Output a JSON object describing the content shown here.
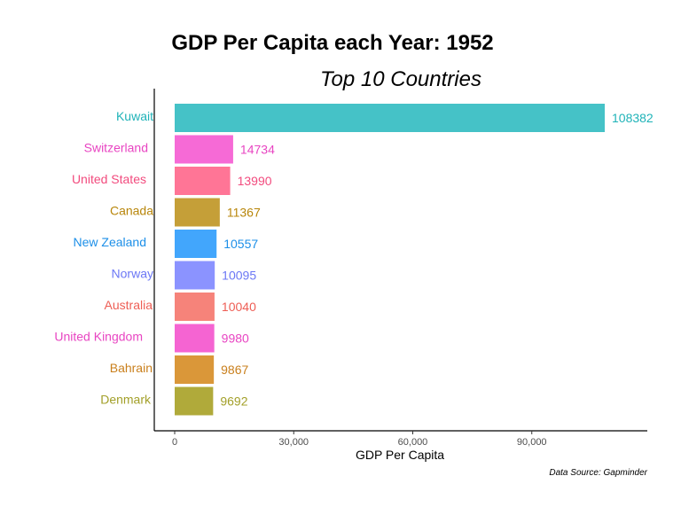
{
  "chart_data": {
    "type": "bar",
    "orientation": "horizontal",
    "title": "GDP Per Capita each Year: 1952",
    "subtitle": "Top 10 Countries",
    "xlabel": "GDP Per Capita",
    "ylabel": "",
    "caption": "Data Source: Gapminder",
    "xlim": [
      0,
      115000
    ],
    "xticks": [
      0,
      30000,
      60000,
      90000
    ],
    "xtick_labels": [
      "0",
      "30,000",
      "60,000",
      "90,000"
    ],
    "grid": false,
    "legend": "none",
    "categories": [
      "Kuwait",
      "Switzerland",
      "United States",
      "Canada",
      "New Zealand",
      "Norway",
      "Australia",
      "United Kingdom",
      "Bahrain",
      "Denmark"
    ],
    "values": [
      108382,
      14734,
      13990,
      11367,
      10557,
      10095,
      10040,
      9980,
      9867,
      9692
    ],
    "value_labels": [
      "108382",
      "14734",
      "13990",
      "11367",
      "10557",
      "10095",
      "10040",
      "9980",
      "9867",
      "9692"
    ],
    "colors": [
      "#45C2C7",
      "#F66AD6",
      "#FF7596",
      "#C59F38",
      "#42A6FC",
      "#8B93FF",
      "#F6837A",
      "#F564D2",
      "#DA9739",
      "#B0AA3A"
    ],
    "label_colors": [
      "#1FB3B8",
      "#E845C2",
      "#F24B7E",
      "#B8860B",
      "#1C8FE8",
      "#6C78F5",
      "#EE5E55",
      "#E845C2",
      "#C97F1C",
      "#A3A02A"
    ]
  }
}
